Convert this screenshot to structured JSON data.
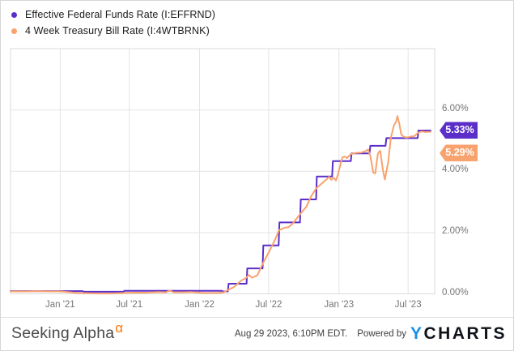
{
  "legend": {
    "items": [
      {
        "label": "Effective Federal Funds Rate (I:EFFRND)",
        "color": "#5b2ec9"
      },
      {
        "label": "4 Week Treasury Bill Rate (I:4WTBRNK)",
        "color": "#f8a26e"
      }
    ]
  },
  "chart_data": {
    "type": "line",
    "x_range": [
      "2020-08-24",
      "2023-08-29"
    ],
    "y_range": [
      0,
      8
    ],
    "grid": true,
    "legend_position": "top-left",
    "x_ticks": [
      {
        "label": "Jan '21",
        "date": "2021-01-01"
      },
      {
        "label": "Jul '21",
        "date": "2021-07-01"
      },
      {
        "label": "Jan '22",
        "date": "2022-01-01"
      },
      {
        "label": "Jul '22",
        "date": "2022-07-01"
      },
      {
        "label": "Jan '23",
        "date": "2023-01-01"
      },
      {
        "label": "Jul '23",
        "date": "2023-07-01"
      }
    ],
    "y_ticks": [
      {
        "label": "0.00%",
        "value": 0
      },
      {
        "label": "2.00%",
        "value": 2
      },
      {
        "label": "4.00%",
        "value": 4
      },
      {
        "label": "6.00%",
        "value": 6
      }
    ],
    "series": [
      {
        "name": "Effective Federal Funds Rate",
        "symbol": "I:EFFRND",
        "color": "#5b2ec9",
        "last_value": 5.33,
        "last_value_label": "5.33%",
        "points": [
          [
            "2020-08-24",
            0.09
          ],
          [
            "2021-02-28",
            0.09
          ],
          [
            "2021-03-05",
            0.07
          ],
          [
            "2021-06-16",
            0.07
          ],
          [
            "2021-06-18",
            0.1
          ],
          [
            "2022-02-28",
            0.1
          ],
          [
            "2022-03-02",
            0.08
          ],
          [
            "2022-03-16",
            0.08
          ],
          [
            "2022-03-18",
            0.33
          ],
          [
            "2022-05-04",
            0.33
          ],
          [
            "2022-05-06",
            0.83
          ],
          [
            "2022-06-15",
            0.83
          ],
          [
            "2022-06-17",
            1.58
          ],
          [
            "2022-07-27",
            1.58
          ],
          [
            "2022-07-29",
            2.33
          ],
          [
            "2022-09-21",
            2.33
          ],
          [
            "2022-09-23",
            3.08
          ],
          [
            "2022-11-02",
            3.08
          ],
          [
            "2022-11-04",
            3.83
          ],
          [
            "2022-12-14",
            3.83
          ],
          [
            "2022-12-16",
            4.33
          ],
          [
            "2023-02-01",
            4.33
          ],
          [
            "2023-02-03",
            4.58
          ],
          [
            "2023-03-22",
            4.58
          ],
          [
            "2023-03-24",
            4.83
          ],
          [
            "2023-05-03",
            4.83
          ],
          [
            "2023-05-05",
            5.08
          ],
          [
            "2023-07-26",
            5.08
          ],
          [
            "2023-07-28",
            5.33
          ],
          [
            "2023-08-29",
            5.33
          ]
        ]
      },
      {
        "name": "4 Week Treasury Bill Rate",
        "symbol": "I:4WTBRNK",
        "color": "#f8a26e",
        "last_value": 5.29,
        "last_value_label": "5.29%",
        "points": [
          [
            "2020-08-24",
            0.08
          ],
          [
            "2020-10-01",
            0.08
          ],
          [
            "2020-11-01",
            0.09
          ],
          [
            "2020-12-01",
            0.08
          ],
          [
            "2021-01-01",
            0.08
          ],
          [
            "2021-01-20",
            0.06
          ],
          [
            "2021-02-15",
            0.03
          ],
          [
            "2021-03-15",
            0.02
          ],
          [
            "2021-04-15",
            0.01
          ],
          [
            "2021-05-15",
            0.01
          ],
          [
            "2021-06-15",
            0.03
          ],
          [
            "2021-07-15",
            0.04
          ],
          [
            "2021-08-15",
            0.04
          ],
          [
            "2021-09-15",
            0.06
          ],
          [
            "2021-10-05",
            0.05
          ],
          [
            "2021-10-15",
            0.11
          ],
          [
            "2021-10-25",
            0.05
          ],
          [
            "2021-11-15",
            0.05
          ],
          [
            "2021-12-10",
            0.06
          ],
          [
            "2022-01-10",
            0.03
          ],
          [
            "2022-02-15",
            0.03
          ],
          [
            "2022-03-05",
            0.05
          ],
          [
            "2022-03-20",
            0.15
          ],
          [
            "2022-04-01",
            0.22
          ],
          [
            "2022-04-12",
            0.35
          ],
          [
            "2022-04-22",
            0.45
          ],
          [
            "2022-05-01",
            0.5
          ],
          [
            "2022-05-10",
            0.62
          ],
          [
            "2022-05-18",
            0.53
          ],
          [
            "2022-06-01",
            0.6
          ],
          [
            "2022-06-16",
            1.0
          ],
          [
            "2022-07-01",
            1.35
          ],
          [
            "2022-07-12",
            1.62
          ],
          [
            "2022-07-18",
            1.78
          ],
          [
            "2022-07-28",
            2.08
          ],
          [
            "2022-08-10",
            2.15
          ],
          [
            "2022-08-22",
            2.18
          ],
          [
            "2022-09-01",
            2.28
          ],
          [
            "2022-09-23",
            2.63
          ],
          [
            "2022-10-08",
            2.85
          ],
          [
            "2022-10-20",
            3.18
          ],
          [
            "2022-11-03",
            3.45
          ],
          [
            "2022-11-15",
            3.58
          ],
          [
            "2022-12-01",
            3.75
          ],
          [
            "2022-12-06",
            3.82
          ],
          [
            "2022-12-12",
            3.72
          ],
          [
            "2022-12-18",
            3.79
          ],
          [
            "2022-12-24",
            3.7
          ],
          [
            "2022-12-29",
            3.88
          ],
          [
            "2023-01-04",
            4.18
          ],
          [
            "2023-01-10",
            4.45
          ],
          [
            "2023-01-16",
            4.48
          ],
          [
            "2023-01-22",
            4.43
          ],
          [
            "2023-02-01",
            4.56
          ],
          [
            "2023-02-15",
            4.6
          ],
          [
            "2023-03-01",
            4.61
          ],
          [
            "2023-03-12",
            4.66
          ],
          [
            "2023-03-18",
            4.71
          ],
          [
            "2023-03-24",
            4.5
          ],
          [
            "2023-04-01",
            3.95
          ],
          [
            "2023-04-06",
            3.93
          ],
          [
            "2023-04-13",
            4.58
          ],
          [
            "2023-04-19",
            4.67
          ],
          [
            "2023-04-26",
            4.05
          ],
          [
            "2023-05-01",
            3.73
          ],
          [
            "2023-05-10",
            4.3
          ],
          [
            "2023-05-17",
            5.1
          ],
          [
            "2023-05-25",
            5.5
          ],
          [
            "2023-05-30",
            5.6
          ],
          [
            "2023-06-03",
            5.8
          ],
          [
            "2023-06-08",
            5.55
          ],
          [
            "2023-06-13",
            5.2
          ],
          [
            "2023-06-20",
            5.12
          ],
          [
            "2023-06-28",
            5.1
          ],
          [
            "2023-07-08",
            5.13
          ],
          [
            "2023-07-18",
            5.15
          ],
          [
            "2023-07-26",
            5.25
          ],
          [
            "2023-08-05",
            5.3
          ],
          [
            "2023-08-15",
            5.28
          ],
          [
            "2023-08-29",
            5.29
          ]
        ]
      }
    ]
  },
  "value_tags": [
    {
      "text": "5.33%",
      "color": "#5b2ec9"
    },
    {
      "text": "5.29%",
      "color": "#f8a26e"
    }
  ],
  "footer": {
    "brand": "Seeking Alpha",
    "brand_alpha": "α",
    "timestamp": "Aug 29 2023, 6:10PM EDT.",
    "powered_by": "Powered by",
    "ycharts_y": "Y",
    "ycharts_rest": "CHARTS"
  },
  "colors": {
    "grid": "#e4e4e4",
    "plot_border": "#dadada",
    "axis_line": "#a8a8a8"
  }
}
